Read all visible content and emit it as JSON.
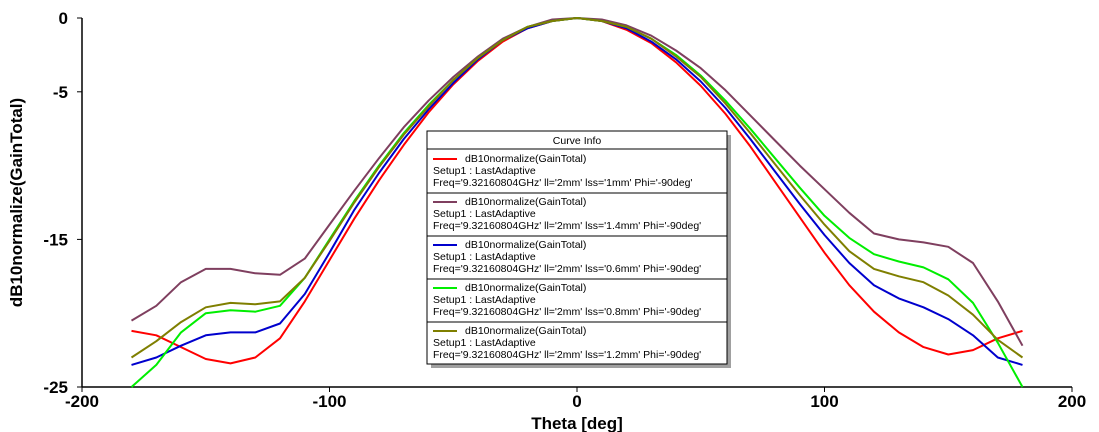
{
  "chart_data": {
    "type": "line",
    "xlabel": "Theta [deg]",
    "ylabel": "dB10normalize(GainTotal)",
    "xlim": [
      -200,
      200
    ],
    "ylim": [
      -25,
      0
    ],
    "xticks": [
      -200,
      -100,
      0,
      100,
      200
    ],
    "yticks": [
      0,
      -5,
      -15,
      -25
    ],
    "grid": false,
    "legend": {
      "title": "Curve Info",
      "placement": "center"
    },
    "series": [
      {
        "name": "dB10normalize(GainTotal)",
        "setup": "Setup1 : LastAdaptive",
        "params": "Freq='9.32160804GHz' ll='2mm' lss='1mm' Phi='-90deg'",
        "color": "#ff0000",
        "x": [
          -180,
          -170,
          -160,
          -150,
          -140,
          -130,
          -120,
          -110,
          -100,
          -90,
          -80,
          -70,
          -60,
          -50,
          -40,
          -30,
          -20,
          -10,
          0,
          10,
          20,
          30,
          40,
          50,
          60,
          70,
          80,
          90,
          100,
          110,
          120,
          130,
          140,
          150,
          160,
          170,
          180
        ],
        "y": [
          -21.2,
          -21.5,
          -22.3,
          -23.1,
          -23.4,
          -23.0,
          -21.7,
          -19.2,
          -16.4,
          -13.6,
          -11.0,
          -8.6,
          -6.4,
          -4.5,
          -2.9,
          -1.6,
          -0.7,
          -0.2,
          0,
          -0.2,
          -0.8,
          -1.7,
          -3.0,
          -4.6,
          -6.5,
          -8.7,
          -11.1,
          -13.5,
          -15.9,
          -18.1,
          -19.9,
          -21.3,
          -22.3,
          -22.8,
          -22.5,
          -21.7,
          -21.2
        ]
      },
      {
        "name": "dB10normalize(GainTotal)",
        "setup": "Setup1 : LastAdaptive",
        "params": "Freq='9.32160804GHz' ll='2mm' lss='1.4mm' Phi='-90deg'",
        "color": "#7f3f5f",
        "x": [
          -180,
          -170,
          -160,
          -150,
          -140,
          -130,
          -120,
          -110,
          -100,
          -90,
          -80,
          -70,
          -60,
          -50,
          -40,
          -30,
          -20,
          -10,
          0,
          10,
          20,
          30,
          40,
          50,
          60,
          70,
          80,
          90,
          100,
          110,
          120,
          130,
          140,
          150,
          160,
          170,
          180
        ],
        "y": [
          -20.5,
          -19.5,
          -17.9,
          -17.0,
          -17.0,
          -17.3,
          -17.4,
          -16.3,
          -14.0,
          -11.7,
          -9.5,
          -7.4,
          -5.6,
          -4.0,
          -2.6,
          -1.4,
          -0.6,
          -0.1,
          0,
          -0.1,
          -0.5,
          -1.2,
          -2.2,
          -3.4,
          -4.9,
          -6.6,
          -8.3,
          -10.0,
          -11.6,
          -13.2,
          -14.6,
          -15.0,
          -15.2,
          -15.5,
          -16.6,
          -19.2,
          -22.2
        ]
      },
      {
        "name": "dB10normalize(GainTotal)",
        "setup": "Setup1 : LastAdaptive",
        "params": "Freq='9.32160804GHz' ll='2mm' lss='0.6mm' Phi='-90deg'",
        "color": "#0000cd",
        "x": [
          -180,
          -170,
          -160,
          -150,
          -140,
          -130,
          -120,
          -110,
          -100,
          -90,
          -80,
          -70,
          -60,
          -50,
          -40,
          -30,
          -20,
          -10,
          0,
          10,
          20,
          30,
          40,
          50,
          60,
          70,
          80,
          90,
          100,
          110,
          120,
          130,
          140,
          150,
          160,
          170,
          180
        ],
        "y": [
          -23.5,
          -23.0,
          -22.2,
          -21.5,
          -21.3,
          -21.3,
          -20.7,
          -18.7,
          -15.9,
          -13.0,
          -10.5,
          -8.2,
          -6.2,
          -4.4,
          -2.8,
          -1.5,
          -0.7,
          -0.2,
          0,
          -0.2,
          -0.7,
          -1.6,
          -2.8,
          -4.3,
          -6.1,
          -8.2,
          -10.4,
          -12.6,
          -14.7,
          -16.6,
          -18.1,
          -19.0,
          -19.6,
          -20.4,
          -21.5,
          -23.0,
          -23.5
        ]
      },
      {
        "name": "dB10normalize(GainTotal)",
        "setup": "Setup1 : LastAdaptive",
        "params": "Freq='9.32160804GHz' ll='2mm' lss='0.8mm' Phi='-90deg'",
        "color": "#00ee00",
        "x": [
          -180,
          -170,
          -160,
          -150,
          -140,
          -130,
          -120,
          -110,
          -100,
          -90,
          -80,
          -70,
          -60,
          -50,
          -40,
          -30,
          -20,
          -10,
          0,
          10,
          20,
          30,
          40,
          50,
          60,
          70,
          80,
          90,
          100,
          110,
          120,
          130,
          140,
          150,
          160,
          170,
          180
        ],
        "y": [
          -25.0,
          -23.5,
          -21.3,
          -20.0,
          -19.8,
          -19.9,
          -19.5,
          -17.6,
          -15.0,
          -12.4,
          -10.0,
          -7.8,
          -5.9,
          -4.2,
          -2.7,
          -1.5,
          -0.6,
          -0.2,
          0,
          -0.2,
          -0.6,
          -1.4,
          -2.5,
          -3.9,
          -5.6,
          -7.5,
          -9.5,
          -11.5,
          -13.4,
          -14.9,
          -16.0,
          -16.5,
          -16.9,
          -17.7,
          -19.3,
          -22.0,
          -25.0
        ]
      },
      {
        "name": "dB10normalize(GainTotal)",
        "setup": "Setup1 : LastAdaptive",
        "params": "Freq='9.32160804GHz' ll='2mm' lss='1.2mm' Phi='-90deg'",
        "color": "#7f7f00",
        "x": [
          -180,
          -170,
          -160,
          -150,
          -140,
          -130,
          -120,
          -110,
          -100,
          -90,
          -80,
          -70,
          -60,
          -50,
          -40,
          -30,
          -20,
          -10,
          0,
          10,
          20,
          30,
          40,
          50,
          60,
          70,
          80,
          90,
          100,
          110,
          120,
          130,
          140,
          150,
          160,
          170,
          180
        ],
        "y": [
          -23.0,
          -21.9,
          -20.6,
          -19.6,
          -19.3,
          -19.4,
          -19.2,
          -17.6,
          -15.1,
          -12.5,
          -10.1,
          -7.9,
          -6.0,
          -4.2,
          -2.7,
          -1.5,
          -0.6,
          -0.2,
          0,
          -0.2,
          -0.6,
          -1.4,
          -2.6,
          -4.0,
          -5.8,
          -7.8,
          -9.9,
          -12.0,
          -14.0,
          -15.8,
          -17.0,
          -17.5,
          -17.9,
          -18.8,
          -20.1,
          -21.8,
          -23.0
        ]
      }
    ]
  }
}
